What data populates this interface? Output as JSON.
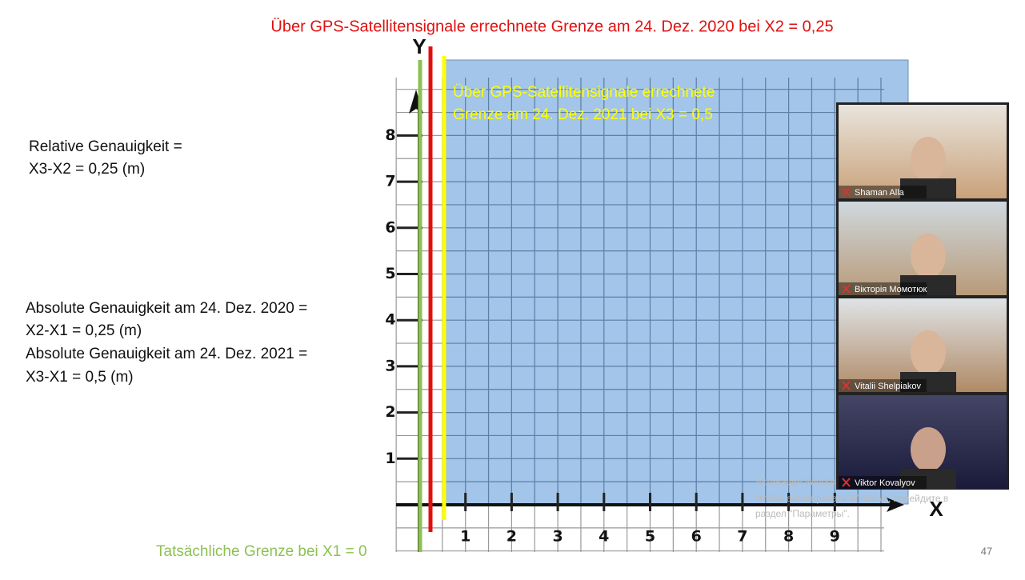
{
  "slide": {
    "title": "Über GPS-Satellitensignale errechnete Grenze am 24. Dez. 2020 bei X2 = 0,25",
    "relative": [
      "Relative Genauigkeit =",
      "X3-X2 = 0,25 (m)"
    ],
    "absolute": [
      "Absolute Genauigkeit am 24. Dez. 2020 =",
      "X2-X1 = 0,25 (m)",
      "Absolute Genauigkeit am 24. Dez. 2021 =",
      "X3-X1 = 0,5 (m)"
    ],
    "x3_label": [
      "Über GPS-Satellitensignale errechnete",
      "Grenze am 24. Dez. 2021 bei X3 = 0,5"
    ],
    "x1_label": "Tatsächliche Grenze bei X1 = 0",
    "y_axis_label": "Y",
    "x_axis_label": "X",
    "x_ticks": [
      1,
      2,
      3,
      4,
      5,
      6,
      7,
      8,
      9
    ],
    "y_ticks": [
      1,
      2,
      3,
      4,
      5,
      6,
      7,
      8
    ],
    "slide_number": "47"
  },
  "participants": [
    "Shaman Alla",
    "Вікторія Момотюк",
    "Vitalii Shelpiakov",
    "Viktor Kovalyov"
  ],
  "watermark": [
    "Активация Windows",
    "Чтобы активировать Windows, перейдите в",
    "раздел \"Параметры\"."
  ]
}
